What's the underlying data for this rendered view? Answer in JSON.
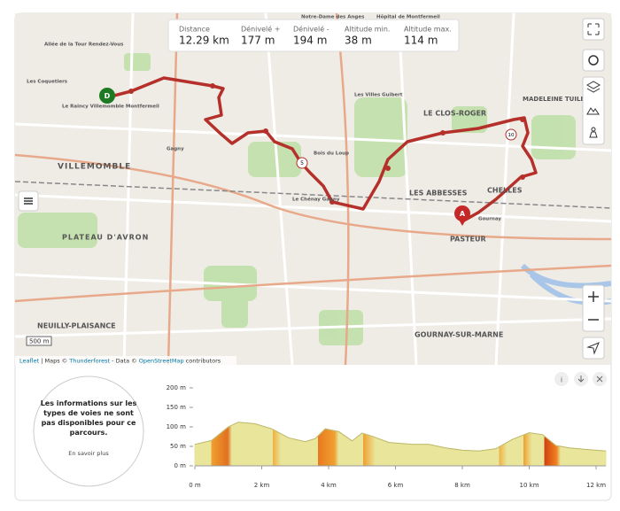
{
  "stats": [
    {
      "label": "Distance",
      "value": "12.29 km"
    },
    {
      "label": "Dénivelé +",
      "value": "177 m"
    },
    {
      "label": "Dénivelé -",
      "value": "194 m"
    },
    {
      "label": "Altitude min.",
      "value": "38 m"
    },
    {
      "label": "Altitude max.",
      "value": "114 m"
    }
  ],
  "map": {
    "labels": [
      "Notre-Dame des Anges",
      "Hôpital de Montfermeil",
      "Allée de la Tour Rendez-Vous",
      "Les Coquetiers",
      "Le Raincy Villemomble Montfermeil",
      "VILLEMOMBLE",
      "Gagny",
      "PLATEAU D'AVRON",
      "NEUILLY-PLAISANCE",
      "Les Villes Guibert",
      "LE CLOS-ROGER",
      "MADELEINE TUILERIE",
      "Bois du Loup",
      "Le Chénay Gagny",
      "LES ABBESSES",
      "PASTEUR",
      "Gournay",
      "GOURNAY-SUR-MARNE",
      "CHELLES"
    ],
    "markers": {
      "start": "D",
      "end": "A",
      "waypoints": [
        "5",
        "10"
      ]
    },
    "scale": "500 m",
    "attribution": {
      "leaflet": "Leaflet",
      "maps": "| Maps ©",
      "thunderforest": "Thunderforest",
      "data": "- Data ©",
      "osm": "OpenStreetMap",
      "contrib": "contributors"
    }
  },
  "info": {
    "text": "Les informations sur les types de voies ne sont pas disponibles pour ce parcours.",
    "link": "En savoir plus"
  },
  "chart_data": {
    "type": "area",
    "xlim": [
      0,
      12.29
    ],
    "ylim": [
      0,
      200
    ],
    "yticks": [
      {
        "value": 0,
        "label": "0 m"
      },
      {
        "value": 50,
        "label": "50 m"
      },
      {
        "value": 100,
        "label": "100 m"
      },
      {
        "value": 150,
        "label": "150 m"
      },
      {
        "value": 200,
        "label": "200 m"
      }
    ],
    "xticks": [
      {
        "value": 0,
        "label": "0 m"
      },
      {
        "value": 2,
        "label": "2 km"
      },
      {
        "value": 4,
        "label": "4 km"
      },
      {
        "value": 6,
        "label": "6 km"
      },
      {
        "value": 8,
        "label": "8 km"
      },
      {
        "value": 10,
        "label": "10 km"
      },
      {
        "value": 12,
        "label": "12 km"
      }
    ],
    "series": [
      {
        "color": "#e9e69c",
        "x": [
          0,
          0.5,
          1,
          1.3,
          1.8,
          2.3,
          2.8,
          3.3,
          3.6,
          3.9,
          4.3,
          4.7,
          5,
          5.3,
          5.8,
          6.5,
          7,
          7.5,
          8,
          8.5,
          9,
          9.5,
          10,
          10.4,
          10.8,
          11.2,
          11.7,
          12.29
        ],
        "values": [
          55,
          65,
          100,
          112,
          108,
          95,
          72,
          62,
          70,
          95,
          88,
          64,
          84,
          76,
          60,
          55,
          55,
          46,
          40,
          38,
          44,
          68,
          85,
          80,
          52,
          46,
          42,
          38
        ]
      }
    ]
  }
}
